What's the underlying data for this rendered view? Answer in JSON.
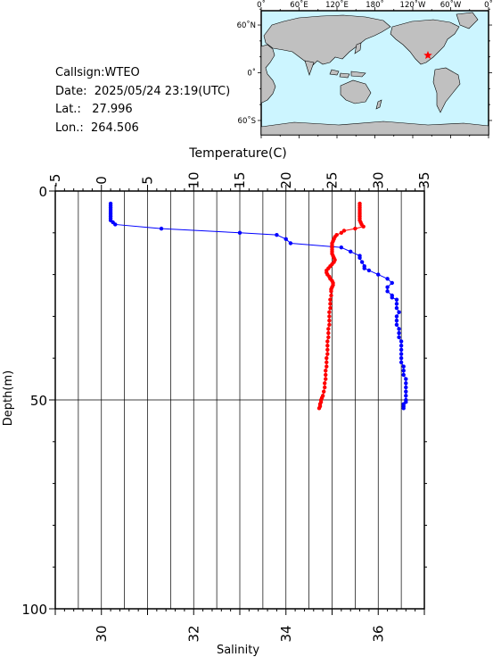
{
  "info": {
    "callsign": "Callsign:WTEO",
    "date": "Date:  2025/05/24 23:19(UTC)",
    "lat": "Lat.:   27.996",
    "lon": "Lon.:  264.506"
  },
  "map": {
    "lon_labels": [
      "0˚",
      "60˚E",
      "120˚E",
      "180˚",
      "120˚W",
      "60˚W",
      "0˚"
    ],
    "lat_labels": [
      "60˚N",
      "0˚",
      "60˚S"
    ],
    "ocean_color": "#ccf5ff",
    "land_color": "#c0c0c0",
    "marker_color": "#ff0000",
    "marker_icon": "star-icon"
  },
  "chart_data": {
    "type": "line",
    "temp_axis": {
      "label": "Temperature(C)",
      "range": [
        -5,
        35
      ],
      "ticks": [
        "-5",
        "0",
        "5",
        "10",
        "15",
        "20",
        "25",
        "30",
        "35"
      ]
    },
    "sal_axis": {
      "label": "Salinity",
      "range": [
        29,
        37
      ],
      "ticks": [
        "30",
        "32",
        "34",
        "36"
      ]
    },
    "depth_axis": {
      "label": "Depth(m)",
      "range": [
        0,
        100
      ],
      "inverted": true,
      "ticks": [
        "0",
        "50",
        "100"
      ]
    },
    "series": [
      {
        "axis": "temperature",
        "color": "#ff0000",
        "points": [
          [
            28.0,
            3
          ],
          [
            28.0,
            3.5
          ],
          [
            28.0,
            4
          ],
          [
            28.0,
            4.5
          ],
          [
            28.0,
            5
          ],
          [
            28.0,
            5.5
          ],
          [
            28.0,
            6
          ],
          [
            28.0,
            6.5
          ],
          [
            28.0,
            7
          ],
          [
            28.1,
            7.5
          ],
          [
            28.2,
            8
          ],
          [
            28.4,
            8.5
          ],
          [
            27.5,
            9
          ],
          [
            26.3,
            9.5
          ],
          [
            26.0,
            10
          ],
          [
            25.5,
            10.5
          ],
          [
            25.3,
            11
          ],
          [
            25.2,
            11.5
          ],
          [
            25.1,
            12
          ],
          [
            25.0,
            12.5
          ],
          [
            25.0,
            13
          ],
          [
            25.0,
            13.5
          ],
          [
            25.0,
            14
          ],
          [
            25.0,
            14.5
          ],
          [
            25.0,
            15
          ],
          [
            25.1,
            15.5
          ],
          [
            25.2,
            16
          ],
          [
            25.3,
            16.5
          ],
          [
            25.2,
            17
          ],
          [
            25.0,
            17.5
          ],
          [
            24.8,
            18
          ],
          [
            24.6,
            18.5
          ],
          [
            24.4,
            19
          ],
          [
            24.4,
            19.5
          ],
          [
            24.5,
            20
          ],
          [
            24.7,
            20.5
          ],
          [
            24.8,
            21
          ],
          [
            25.0,
            21.5
          ],
          [
            25.1,
            22
          ],
          [
            25.1,
            22.5
          ],
          [
            25.0,
            23
          ],
          [
            24.9,
            23.5
          ],
          [
            24.9,
            24
          ],
          [
            24.9,
            25
          ],
          [
            24.8,
            26
          ],
          [
            24.8,
            27
          ],
          [
            24.8,
            28
          ],
          [
            24.7,
            29
          ],
          [
            24.7,
            30
          ],
          [
            24.7,
            31
          ],
          [
            24.7,
            32
          ],
          [
            24.6,
            33
          ],
          [
            24.6,
            34
          ],
          [
            24.6,
            35
          ],
          [
            24.5,
            36
          ],
          [
            24.5,
            37
          ],
          [
            24.5,
            38
          ],
          [
            24.5,
            39
          ],
          [
            24.4,
            40
          ],
          [
            24.4,
            41
          ],
          [
            24.4,
            42
          ],
          [
            24.3,
            43
          ],
          [
            24.3,
            44
          ],
          [
            24.3,
            45
          ],
          [
            24.2,
            46
          ],
          [
            24.2,
            47
          ],
          [
            24.1,
            48
          ],
          [
            24.0,
            49
          ],
          [
            23.9,
            49.5
          ],
          [
            23.8,
            50
          ],
          [
            23.8,
            50.5
          ],
          [
            23.7,
            51
          ],
          [
            23.7,
            51.5
          ],
          [
            23.6,
            52
          ]
        ]
      },
      {
        "axis": "salinity",
        "color": "#0000ff",
        "points": [
          [
            30.2,
            3
          ],
          [
            30.2,
            3.5
          ],
          [
            30.2,
            4
          ],
          [
            30.2,
            4.5
          ],
          [
            30.2,
            5
          ],
          [
            30.2,
            5.5
          ],
          [
            30.2,
            6
          ],
          [
            30.2,
            6.5
          ],
          [
            30.2,
            7
          ],
          [
            30.25,
            7.5
          ],
          [
            30.3,
            8
          ],
          [
            31.3,
            9
          ],
          [
            33.0,
            10
          ],
          [
            33.8,
            10.5
          ],
          [
            34.0,
            11.5
          ],
          [
            34.1,
            12.5
          ],
          [
            35.2,
            13.5
          ],
          [
            35.4,
            14.5
          ],
          [
            35.6,
            15.5
          ],
          [
            35.6,
            16
          ],
          [
            35.65,
            17
          ],
          [
            35.7,
            18
          ],
          [
            35.7,
            18.5
          ],
          [
            35.8,
            19
          ],
          [
            36.0,
            20
          ],
          [
            36.2,
            21
          ],
          [
            36.3,
            22
          ],
          [
            36.2,
            23
          ],
          [
            36.2,
            24
          ],
          [
            36.3,
            25
          ],
          [
            36.3,
            25.5
          ],
          [
            36.4,
            26
          ],
          [
            36.4,
            27
          ],
          [
            36.4,
            28
          ],
          [
            36.45,
            29
          ],
          [
            36.4,
            30
          ],
          [
            36.4,
            31
          ],
          [
            36.4,
            32
          ],
          [
            36.45,
            33
          ],
          [
            36.45,
            34
          ],
          [
            36.45,
            35
          ],
          [
            36.5,
            36
          ],
          [
            36.5,
            37
          ],
          [
            36.5,
            38
          ],
          [
            36.5,
            39
          ],
          [
            36.5,
            40
          ],
          [
            36.5,
            41
          ],
          [
            36.55,
            42
          ],
          [
            36.55,
            43
          ],
          [
            36.55,
            44
          ],
          [
            36.6,
            45
          ],
          [
            36.6,
            46
          ],
          [
            36.6,
            47
          ],
          [
            36.6,
            48
          ],
          [
            36.6,
            49
          ],
          [
            36.6,
            50
          ],
          [
            36.6,
            50.5
          ],
          [
            36.55,
            51
          ],
          [
            36.55,
            51.5
          ],
          [
            36.55,
            52
          ]
        ]
      }
    ]
  }
}
